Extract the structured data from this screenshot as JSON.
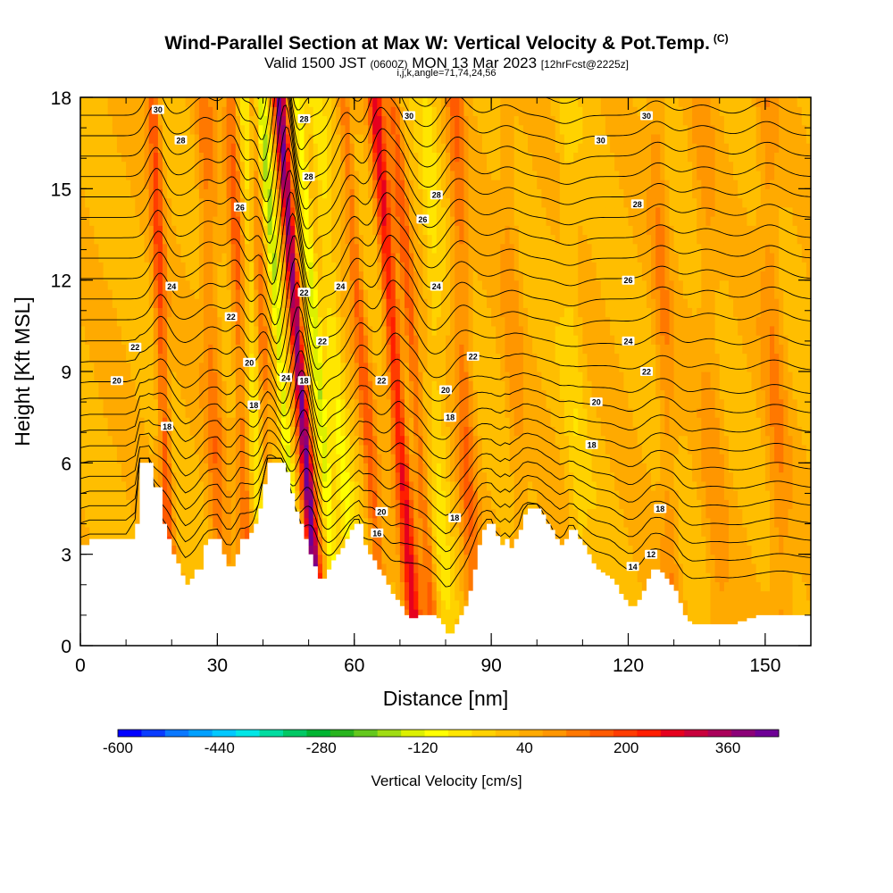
{
  "title": {
    "main": "Wind-Parallel Section at Max W: Vertical Velocity & Pot.Temp.",
    "copyright": "(C)",
    "valid_prefix": "Valid 1500 JST",
    "valid_utc": "(0600Z)",
    "valid_date": "MON 13 Mar 2023",
    "forecast": "[12hrFcst@2225z]",
    "indices": "i,j,k,angle=71,74,24,56"
  },
  "chart_data": {
    "type": "heatmap",
    "xlabel": "Distance [nm]",
    "ylabel": "Height [Kft MSL]",
    "xlim": [
      0,
      160
    ],
    "ylim": [
      0,
      18
    ],
    "x_ticks": [
      "0",
      "30",
      "60",
      "90",
      "120",
      "150"
    ],
    "y_ticks": [
      "0",
      "3",
      "6",
      "9",
      "12",
      "15",
      "18"
    ],
    "colorbar": {
      "label": "Vertical Velocity [cm/s]",
      "tick_labels": [
        "-600",
        "-440",
        "-280",
        "-120",
        "40",
        "200",
        "360"
      ],
      "tick_values": [
        -600,
        -440,
        -280,
        -120,
        40,
        200,
        360
      ],
      "range": [
        -600,
        440
      ],
      "colors": [
        "#0000ff",
        "#0a3cff",
        "#0a78ff",
        "#00a0ff",
        "#00c8ff",
        "#00e6e6",
        "#00dca0",
        "#00c864",
        "#00b432",
        "#28b41e",
        "#64c81e",
        "#a0dc14",
        "#dcf000",
        "#ffff00",
        "#ffe600",
        "#ffd200",
        "#ffbe00",
        "#ffaa00",
        "#ff9600",
        "#ff7800",
        "#ff5a00",
        "#ff3c00",
        "#ff1e00",
        "#e6001e",
        "#c8003c",
        "#aa005a",
        "#8c0078",
        "#6e0096"
      ]
    },
    "isentrope_labels": [
      {
        "text": "30",
        "x": 17,
        "y": 17.6
      },
      {
        "text": "30",
        "x": 72,
        "y": 17.4
      },
      {
        "text": "30",
        "x": 124,
        "y": 17.4
      },
      {
        "text": "30",
        "x": 114,
        "y": 16.6
      },
      {
        "text": "28",
        "x": 22,
        "y": 16.6
      },
      {
        "text": "28",
        "x": 49,
        "y": 17.3
      },
      {
        "text": "28",
        "x": 50,
        "y": 15.4
      },
      {
        "text": "28",
        "x": 78,
        "y": 14.8
      },
      {
        "text": "28",
        "x": 122,
        "y": 14.5
      },
      {
        "text": "26",
        "x": 35,
        "y": 14.4
      },
      {
        "text": "26",
        "x": 120,
        "y": 12.0
      },
      {
        "text": "26",
        "x": 75,
        "y": 14.0
      },
      {
        "text": "24",
        "x": 20,
        "y": 11.8
      },
      {
        "text": "24",
        "x": 57,
        "y": 11.8
      },
      {
        "text": "24",
        "x": 78,
        "y": 11.8
      },
      {
        "text": "24",
        "x": 120,
        "y": 10.0
      },
      {
        "text": "24",
        "x": 45,
        "y": 8.8
      },
      {
        "text": "22",
        "x": 12,
        "y": 9.8
      },
      {
        "text": "22",
        "x": 33,
        "y": 10.8
      },
      {
        "text": "22",
        "x": 49,
        "y": 11.6
      },
      {
        "text": "22",
        "x": 53,
        "y": 10.0
      },
      {
        "text": "22",
        "x": 66,
        "y": 8.7
      },
      {
        "text": "22",
        "x": 86,
        "y": 9.5
      },
      {
        "text": "22",
        "x": 124,
        "y": 9.0
      },
      {
        "text": "20",
        "x": 8,
        "y": 8.7
      },
      {
        "text": "20",
        "x": 37,
        "y": 9.3
      },
      {
        "text": "20",
        "x": 80,
        "y": 8.4
      },
      {
        "text": "20",
        "x": 113,
        "y": 8.0
      },
      {
        "text": "20",
        "x": 66,
        "y": 4.4
      },
      {
        "text": "18",
        "x": 49,
        "y": 8.7
      },
      {
        "text": "18",
        "x": 38,
        "y": 7.9
      },
      {
        "text": "18",
        "x": 81,
        "y": 7.5
      },
      {
        "text": "18",
        "x": 112,
        "y": 6.6
      },
      {
        "text": "18",
        "x": 82,
        "y": 4.2
      },
      {
        "text": "18",
        "x": 127,
        "y": 4.5
      },
      {
        "text": "18",
        "x": 19,
        "y": 7.2
      },
      {
        "text": "16",
        "x": 65,
        "y": 3.7
      },
      {
        "text": "14",
        "x": 121,
        "y": 2.6
      },
      {
        "text": "12",
        "x": 125,
        "y": 3.0
      }
    ],
    "terrain": [
      [
        0,
        3.3
      ],
      [
        2,
        3.5
      ],
      [
        5,
        3.5
      ],
      [
        8,
        3.5
      ],
      [
        10,
        3.5
      ],
      [
        12,
        4.0
      ],
      [
        13,
        6.0
      ],
      [
        15,
        6.0
      ],
      [
        16,
        5.2
      ],
      [
        18,
        4.0
      ],
      [
        19,
        3.5
      ],
      [
        20,
        3.0
      ],
      [
        21,
        2.7
      ],
      [
        22,
        2.3
      ],
      [
        23,
        2.0
      ],
      [
        24,
        2.2
      ],
      [
        25,
        2.5
      ],
      [
        27,
        3.3
      ],
      [
        28,
        3.5
      ],
      [
        30,
        3.5
      ],
      [
        31,
        3.0
      ],
      [
        32,
        2.6
      ],
      [
        33,
        2.6
      ],
      [
        34,
        3.0
      ],
      [
        35,
        3.5
      ],
      [
        36,
        3.5
      ],
      [
        37,
        3.7
      ],
      [
        38,
        4.0
      ],
      [
        39,
        4.5
      ],
      [
        40,
        5.3
      ],
      [
        41,
        6.0
      ],
      [
        44,
        6.0
      ],
      [
        45,
        5.7
      ],
      [
        46,
        5.0
      ],
      [
        47,
        4.4
      ],
      [
        48,
        4.0
      ],
      [
        49,
        3.5
      ],
      [
        50,
        3.0
      ],
      [
        51,
        2.6
      ],
      [
        52,
        2.2
      ],
      [
        53,
        2.2
      ],
      [
        54,
        2.5
      ],
      [
        55,
        2.8
      ],
      [
        56,
        3.0
      ],
      [
        57,
        3.2
      ],
      [
        58,
        3.5
      ],
      [
        59,
        3.8
      ],
      [
        60,
        4.0
      ],
      [
        61,
        4.0
      ],
      [
        62,
        3.3
      ],
      [
        63,
        3.0
      ],
      [
        64,
        2.8
      ],
      [
        65,
        2.5
      ],
      [
        66,
        2.3
      ],
      [
        67,
        2.0
      ],
      [
        68,
        1.7
      ],
      [
        69,
        1.5
      ],
      [
        70,
        1.3
      ],
      [
        71,
        1.0
      ],
      [
        72,
        0.9
      ],
      [
        73,
        0.9
      ],
      [
        74,
        1.0
      ],
      [
        76,
        1.0
      ],
      [
        78,
        0.9
      ],
      [
        79,
        0.7
      ],
      [
        80,
        0.4
      ],
      [
        81,
        0.4
      ],
      [
        82,
        0.7
      ],
      [
        83,
        1.0
      ],
      [
        84,
        1.3
      ],
      [
        85,
        1.8
      ],
      [
        86,
        2.5
      ],
      [
        87,
        3.3
      ],
      [
        88,
        3.8
      ],
      [
        89,
        4.0
      ],
      [
        90,
        4.0
      ],
      [
        91,
        3.6
      ],
      [
        92,
        3.3
      ],
      [
        93,
        3.5
      ],
      [
        94,
        3.2
      ],
      [
        95,
        3.5
      ],
      [
        96,
        3.8
      ],
      [
        97,
        4.3
      ],
      [
        98,
        4.5
      ],
      [
        99,
        4.5
      ],
      [
        100,
        4.5
      ],
      [
        101,
        4.3
      ],
      [
        102,
        4.0
      ],
      [
        103,
        3.8
      ],
      [
        104,
        3.5
      ],
      [
        105,
        3.3
      ],
      [
        106,
        3.5
      ],
      [
        107,
        3.8
      ],
      [
        108,
        3.8
      ],
      [
        109,
        3.5
      ],
      [
        110,
        3.3
      ],
      [
        111,
        3.0
      ],
      [
        112,
        2.7
      ],
      [
        113,
        2.5
      ],
      [
        114,
        2.4
      ],
      [
        115,
        2.3
      ],
      [
        116,
        2.2
      ],
      [
        117,
        2.0
      ],
      [
        118,
        1.7
      ],
      [
        119,
        1.5
      ],
      [
        120,
        1.3
      ],
      [
        121,
        1.3
      ],
      [
        122,
        1.5
      ],
      [
        123,
        1.8
      ],
      [
        124,
        2.2
      ],
      [
        125,
        2.5
      ],
      [
        126,
        2.5
      ],
      [
        127,
        2.4
      ],
      [
        128,
        2.2
      ],
      [
        129,
        2.0
      ],
      [
        130,
        1.8
      ],
      [
        131,
        1.4
      ],
      [
        132,
        1.0
      ],
      [
        133,
        0.8
      ],
      [
        134,
        0.7
      ],
      [
        136,
        0.7
      ],
      [
        138,
        0.7
      ],
      [
        140,
        0.7
      ],
      [
        142,
        0.7
      ],
      [
        144,
        0.8
      ],
      [
        146,
        0.9
      ],
      [
        148,
        1.0
      ],
      [
        150,
        1.0
      ],
      [
        152,
        1.0
      ],
      [
        154,
        1.0
      ],
      [
        156,
        1.0
      ],
      [
        158,
        1.0
      ],
      [
        160,
        1.0
      ]
    ],
    "w_features": [
      {
        "x": 48,
        "w": 380,
        "sx": 1.3
      },
      {
        "x": 44,
        "w": -180,
        "sx": 1.2
      },
      {
        "x": 52,
        "w": -150,
        "sx": 1.2
      },
      {
        "x": 56,
        "w": -90,
        "sx": 2.0
      },
      {
        "x": 69,
        "w": 230,
        "sx": 1.6
      },
      {
        "x": 62,
        "w": 120,
        "sx": 1.5
      },
      {
        "x": 73,
        "w": 120,
        "sx": 1.5
      },
      {
        "x": 18,
        "w": 150,
        "sx": 1.4
      },
      {
        "x": 29,
        "w": 90,
        "sx": 2.0
      },
      {
        "x": 35,
        "w": 110,
        "sx": 1.4
      },
      {
        "x": 38,
        "w": -80,
        "sx": 1.3
      },
      {
        "x": 40,
        "w": 80,
        "sx": 1.3
      },
      {
        "x": 78,
        "w": -60,
        "sx": 2.0
      },
      {
        "x": 84,
        "w": 100,
        "sx": 2.0
      },
      {
        "x": 95,
        "w": 50,
        "sx": 2.0
      },
      {
        "x": 108,
        "w": -40,
        "sx": 2.0
      },
      {
        "x": 128,
        "w": 70,
        "sx": 2.0
      },
      {
        "x": 138,
        "w": 50,
        "sx": 2.5
      },
      {
        "x": 152,
        "w": 70,
        "sx": 2.5
      }
    ]
  }
}
